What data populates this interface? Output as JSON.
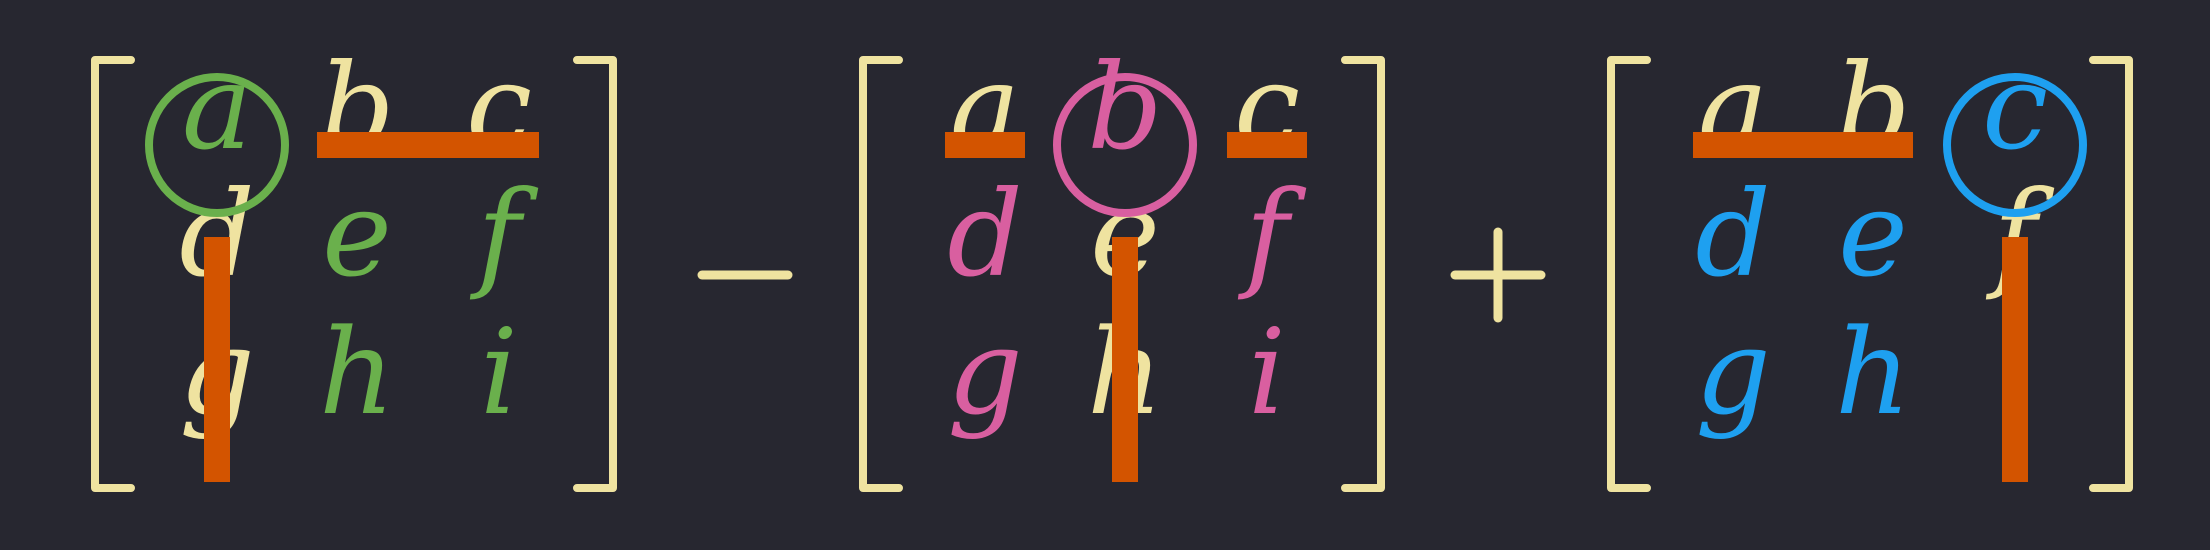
{
  "colors": {
    "background": "#272730",
    "base": "#EFE3A0",
    "strike": "#D35400",
    "green": "#6AB04C",
    "pink": "#D95FA0",
    "blue": "#1EA0F0"
  },
  "operators": [
    "−",
    "+"
  ],
  "matrices": [
    {
      "rows": [
        [
          "a",
          "b",
          "c"
        ],
        [
          "d",
          "e",
          "f"
        ],
        [
          "g",
          "h",
          "i"
        ]
      ],
      "highlight_color": "green",
      "circled": "a"
    },
    {
      "rows": [
        [
          "a",
          "b",
          "c"
        ],
        [
          "d",
          "e",
          "f"
        ],
        [
          "g",
          "h",
          "i"
        ]
      ],
      "highlight_color": "pink",
      "circled": "b"
    },
    {
      "rows": [
        [
          "a",
          "b",
          "c"
        ],
        [
          "d",
          "e",
          "f"
        ],
        [
          "g",
          "h",
          "i"
        ]
      ],
      "highlight_color": "blue",
      "circled": "c"
    }
  ]
}
